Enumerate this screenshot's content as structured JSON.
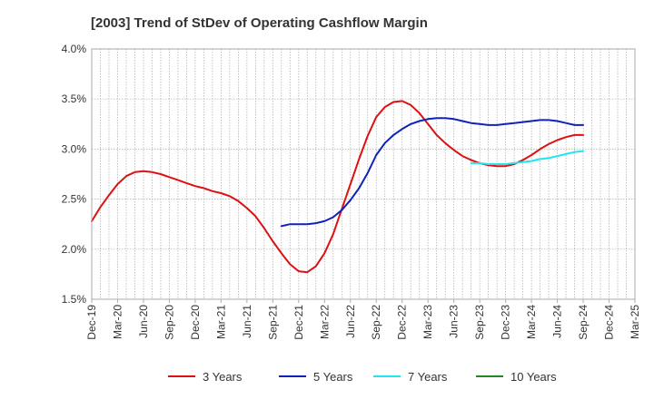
{
  "chart_data": {
    "type": "line",
    "title": "[2003]  Trend of StDev of Operating Cashflow Margin",
    "xlabel": "",
    "ylabel": "",
    "x_ticks": [
      "Dec-19",
      "Mar-20",
      "Jun-20",
      "Sep-20",
      "Dec-20",
      "Mar-21",
      "Jun-21",
      "Sep-21",
      "Dec-21",
      "Mar-22",
      "Jun-22",
      "Sep-22",
      "Dec-22",
      "Mar-23",
      "Jun-23",
      "Sep-23",
      "Dec-23",
      "Mar-24",
      "Jun-24",
      "Sep-24",
      "Dec-24",
      "Mar-25"
    ],
    "y_ticks": [
      "1.5%",
      "2.0%",
      "2.5%",
      "3.0%",
      "3.5%",
      "4.0%"
    ],
    "ylim": [
      1.5,
      4.0
    ],
    "grid": true,
    "legend_position": "bottom",
    "series": [
      {
        "name": "3 Years",
        "color": "#dd1111",
        "x": [
          "Dec-19",
          "Jan-20",
          "Feb-20",
          "Mar-20",
          "Apr-20",
          "May-20",
          "Jun-20",
          "Jul-20",
          "Aug-20",
          "Sep-20",
          "Oct-20",
          "Nov-20",
          "Dec-20",
          "Jan-21",
          "Feb-21",
          "Mar-21",
          "Apr-21",
          "May-21",
          "Jun-21",
          "Jul-21",
          "Aug-21",
          "Sep-21",
          "Oct-21",
          "Nov-21",
          "Dec-21",
          "Jan-22",
          "Feb-22",
          "Mar-22",
          "Apr-22",
          "May-22",
          "Jun-22",
          "Jul-22",
          "Aug-22",
          "Sep-22",
          "Oct-22",
          "Nov-22",
          "Dec-22",
          "Jan-23",
          "Feb-23",
          "Mar-23",
          "Apr-23",
          "May-23",
          "Jun-23",
          "Jul-23",
          "Aug-23",
          "Sep-23",
          "Oct-23",
          "Nov-23",
          "Dec-23",
          "Jan-24",
          "Feb-24",
          "Mar-24",
          "Apr-24",
          "May-24",
          "Jun-24",
          "Jul-24",
          "Aug-24",
          "Sep-24"
        ],
        "values": [
          2.28,
          2.42,
          2.54,
          2.65,
          2.73,
          2.77,
          2.78,
          2.77,
          2.75,
          2.72,
          2.69,
          2.66,
          2.63,
          2.61,
          2.58,
          2.56,
          2.53,
          2.48,
          2.41,
          2.33,
          2.21,
          2.08,
          1.96,
          1.85,
          1.78,
          1.77,
          1.83,
          1.96,
          2.15,
          2.4,
          2.65,
          2.9,
          3.13,
          3.32,
          3.42,
          3.47,
          3.48,
          3.44,
          3.36,
          3.25,
          3.14,
          3.06,
          2.99,
          2.93,
          2.89,
          2.86,
          2.84,
          2.83,
          2.83,
          2.85,
          2.89,
          2.94,
          3.0,
          3.05,
          3.09,
          3.12,
          3.14,
          3.14
        ]
      },
      {
        "name": "5 Years",
        "color": "#1122bb",
        "x": [
          "Oct-21",
          "Nov-21",
          "Dec-21",
          "Jan-22",
          "Feb-22",
          "Mar-22",
          "Apr-22",
          "May-22",
          "Jun-22",
          "Jul-22",
          "Aug-22",
          "Sep-22",
          "Oct-22",
          "Nov-22",
          "Dec-22",
          "Jan-23",
          "Feb-23",
          "Mar-23",
          "Apr-23",
          "May-23",
          "Jun-23",
          "Jul-23",
          "Aug-23",
          "Sep-23",
          "Oct-23",
          "Nov-23",
          "Dec-23",
          "Jan-24",
          "Feb-24",
          "Mar-24",
          "Apr-24",
          "May-24",
          "Jun-24",
          "Jul-24",
          "Aug-24",
          "Sep-24"
        ],
        "values": [
          2.23,
          2.25,
          2.25,
          2.25,
          2.26,
          2.28,
          2.32,
          2.39,
          2.49,
          2.61,
          2.76,
          2.94,
          3.06,
          3.14,
          3.2,
          3.25,
          3.28,
          3.3,
          3.31,
          3.31,
          3.3,
          3.28,
          3.26,
          3.25,
          3.24,
          3.24,
          3.25,
          3.26,
          3.27,
          3.28,
          3.29,
          3.29,
          3.28,
          3.26,
          3.24,
          3.24
        ]
      },
      {
        "name": "7 Years",
        "color": "#22e5ee",
        "x": [
          "Aug-23",
          "Sep-23",
          "Oct-23",
          "Nov-23",
          "Dec-23",
          "Jan-24",
          "Feb-24",
          "Mar-24",
          "Apr-24",
          "May-24",
          "Jun-24",
          "Jul-24",
          "Aug-24",
          "Sep-24"
        ],
        "values": [
          2.86,
          2.86,
          2.85,
          2.85,
          2.85,
          2.86,
          2.87,
          2.88,
          2.9,
          2.91,
          2.93,
          2.95,
          2.97,
          2.98
        ]
      },
      {
        "name": "10 Years",
        "color": "#228822",
        "x": [],
        "values": []
      }
    ]
  }
}
